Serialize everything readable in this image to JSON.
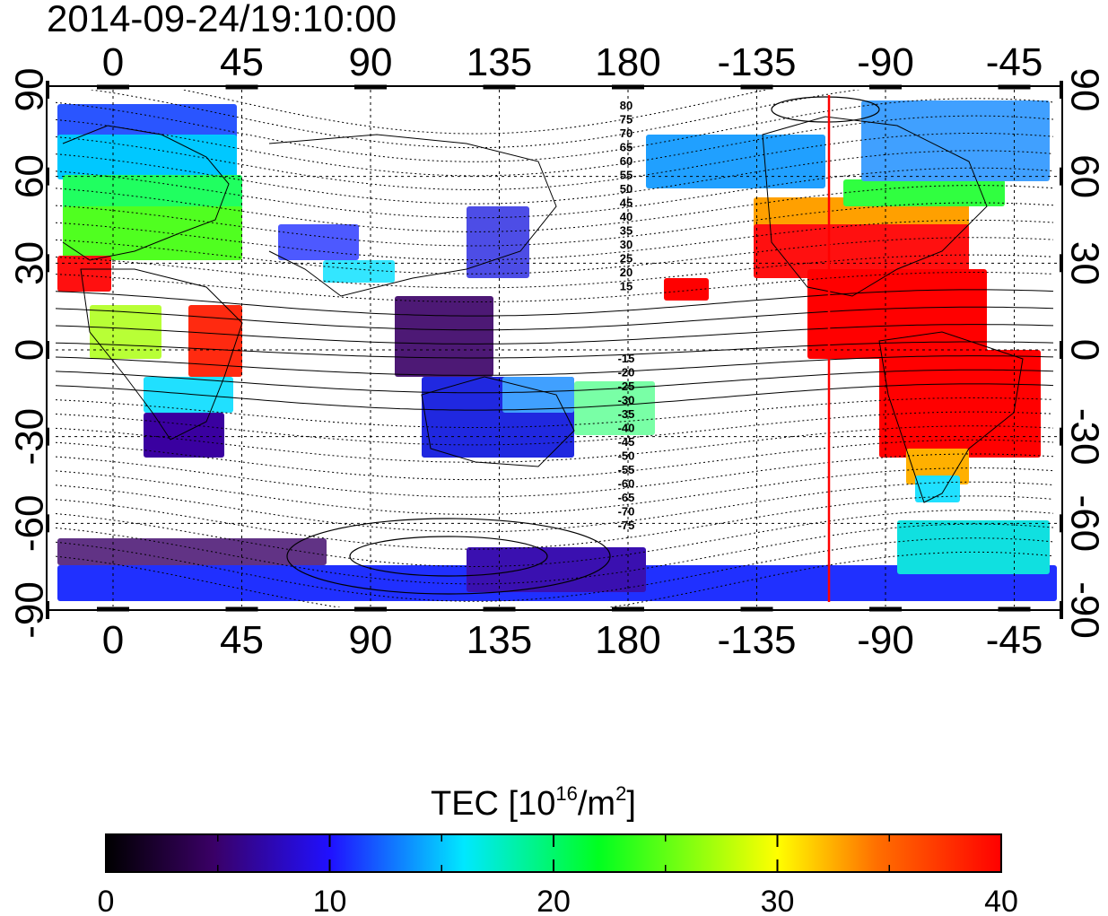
{
  "title": "2014-09-24/19:10:00",
  "map": {
    "top_ticks": [
      "0",
      "45",
      "90",
      "135",
      "180",
      "-135",
      "-90",
      "-45"
    ],
    "bottom_ticks": [
      "0",
      "45",
      "90",
      "135",
      "180",
      "-135",
      "-90",
      "-45"
    ],
    "left_ticks": [
      "90",
      "60",
      "30",
      "0",
      "-30",
      "-60",
      "-90"
    ],
    "right_ticks": [
      "90",
      "60",
      "30",
      "0",
      "-30",
      "-60",
      "-90"
    ],
    "contour_labels_north": [
      "80",
      "75",
      "70",
      "65",
      "60",
      "55",
      "50",
      "45",
      "40",
      "35",
      "30",
      "25",
      "20",
      "15"
    ],
    "contour_labels_south": [
      "-15",
      "-20",
      "-25",
      "-30",
      "-35",
      "-40",
      "-45",
      "-50",
      "-55",
      "-60",
      "-65",
      "-70",
      "-75"
    ],
    "terminator_color": "#ff0000"
  },
  "colorbar": {
    "label_prefix": "TEC  [10",
    "label_exp": "16",
    "label_mid": "/m",
    "label_exp2": "2",
    "label_suffix": "]",
    "ticks": [
      "0",
      "10",
      "20",
      "30",
      "40"
    ],
    "colors": [
      "#000000",
      "#3a0066",
      "#1414ff",
      "#00e8ff",
      "#00ff00",
      "#ffff00",
      "#ff8c00",
      "#ff0000"
    ]
  }
}
